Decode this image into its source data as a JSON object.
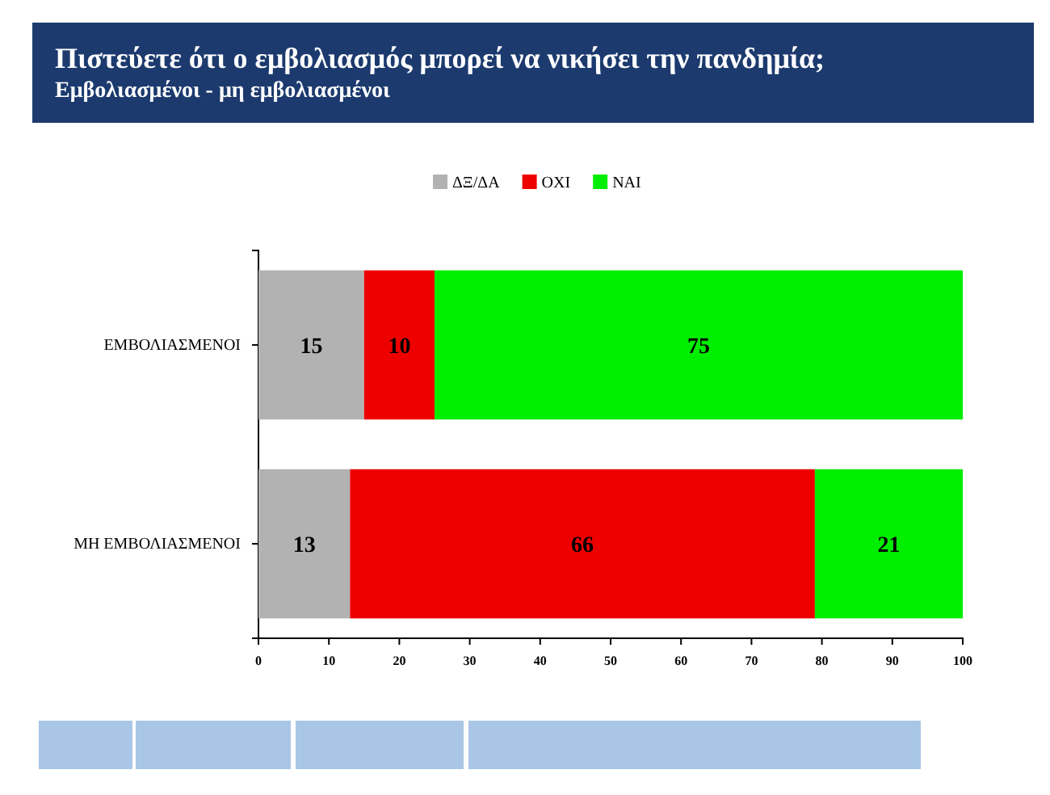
{
  "chart_data": {
    "type": "bar",
    "title": "Πιστεύετε ότι ο εμβολιασμός μπορεί να νικήσει την πανδημία;",
    "subtitle": "Εμβολιασμένοι - μη εμβολιασμένοι",
    "orientation": "horizontal",
    "stacked": true,
    "categories": [
      "ΕΜΒΟΛΙΑΣΜΕΝΟΙ",
      "ΜΗ ΕΜΒΟΛΙΑΣΜΕΝΟΙ"
    ],
    "series": [
      {
        "name": "ΔΞ/ΔΑ",
        "color": "#b2b2b2",
        "values": [
          15,
          13
        ]
      },
      {
        "name": "ΟΧΙ",
        "color": "#ee0000",
        "values": [
          10,
          66
        ]
      },
      {
        "name": "ΝΑΙ",
        "color": "#00ee00",
        "values": [
          75,
          21
        ]
      }
    ],
    "xlim": [
      0,
      100
    ],
    "xticks": [
      0,
      10,
      20,
      30,
      40,
      50,
      60,
      70,
      80,
      90,
      100
    ],
    "data_labels": true,
    "legend": "top",
    "grid": false
  }
}
